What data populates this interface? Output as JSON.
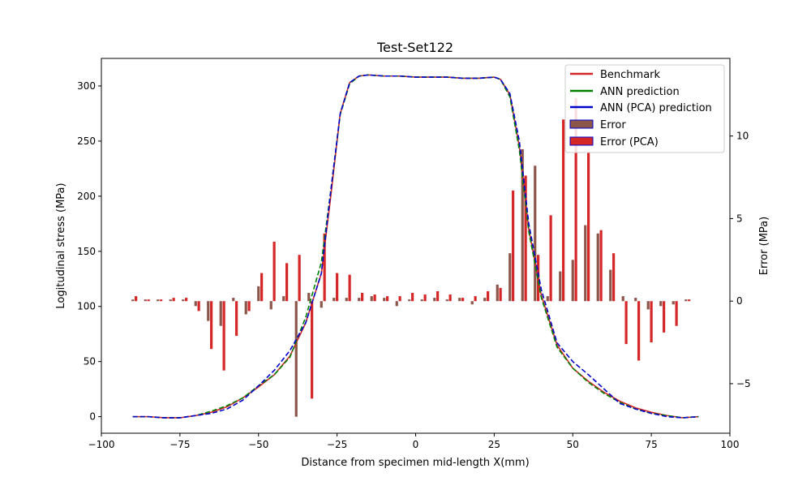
{
  "chart_data": {
    "type": "line",
    "title": "Test-Set122",
    "xlabel": "Distance from specimen mid-length X(mm)",
    "ylabel": "Logitudinal stress (MPa)",
    "y2label": "Error (MPa)",
    "xlim": [
      -100,
      100
    ],
    "ylim": [
      -15,
      325
    ],
    "y2lim": [
      -8,
      14.7
    ],
    "xticks": [
      -100,
      -75,
      -50,
      -25,
      0,
      25,
      50,
      75,
      100
    ],
    "yticks": [
      0,
      50,
      100,
      150,
      200,
      250,
      300
    ],
    "y2ticks": [
      -5,
      0,
      5,
      10
    ],
    "grid": false,
    "legend_position": "top-right",
    "series": [
      {
        "name": "Benchmark",
        "kind": "line",
        "axis": "left",
        "color": "#d62728",
        "x": [
          -90,
          -85,
          -80,
          -75,
          -70,
          -65,
          -60,
          -55,
          -50,
          -45,
          -40,
          -35,
          -30,
          -27,
          -24,
          -21,
          -18,
          -15,
          -10,
          -5,
          0,
          5,
          10,
          15,
          20,
          25,
          27,
          30,
          33,
          36,
          40,
          45,
          50,
          55,
          60,
          65,
          70,
          75,
          80,
          85,
          90
        ],
        "y": [
          0,
          0,
          -1,
          -1,
          1,
          4,
          9,
          17,
          27,
          38,
          55,
          85,
          130,
          200,
          275,
          303,
          309,
          310,
          309,
          309,
          308,
          308,
          308,
          307,
          307,
          308,
          306,
          292,
          245,
          170,
          110,
          65,
          44,
          32,
          22,
          14,
          8,
          4,
          1,
          -1,
          0
        ]
      },
      {
        "name": "ANN prediction",
        "kind": "line",
        "axis": "left",
        "color": "#008000",
        "x": [
          -90,
          -85,
          -80,
          -75,
          -70,
          -65,
          -60,
          -55,
          -50,
          -45,
          -40,
          -35,
          -30,
          -27,
          -24,
          -21,
          -18,
          -15,
          -10,
          -5,
          0,
          5,
          10,
          15,
          20,
          25,
          27,
          30,
          33,
          36,
          40,
          45,
          50,
          55,
          60,
          65,
          70,
          75,
          80,
          85,
          90
        ],
        "y": [
          0,
          0,
          -1,
          -1,
          1,
          5,
          10,
          17,
          28,
          38,
          54,
          90,
          140,
          205,
          274,
          302,
          309,
          310,
          309,
          309,
          308,
          308,
          308,
          307,
          307,
          308,
          306,
          290,
          242,
          168,
          108,
          63,
          44,
          31,
          21,
          13,
          7,
          3,
          1,
          -1,
          0
        ]
      },
      {
        "name": "ANN (PCA) prediction",
        "kind": "line",
        "axis": "left",
        "color": "#0000cd",
        "x": [
          -90,
          -85,
          -80,
          -75,
          -70,
          -65,
          -60,
          -55,
          -50,
          -45,
          -40,
          -35,
          -30,
          -27,
          -24,
          -21,
          -18,
          -15,
          -10,
          -5,
          0,
          5,
          10,
          15,
          20,
          25,
          27,
          30,
          33,
          36,
          40,
          45,
          50,
          55,
          60,
          65,
          70,
          75,
          80,
          85,
          90
        ],
        "y": [
          0,
          0,
          -1,
          -1,
          1,
          3,
          7,
          15,
          28,
          42,
          60,
          85,
          130,
          205,
          275,
          303,
          309,
          310,
          309,
          309,
          308,
          308,
          308,
          307,
          307,
          308,
          306,
          293,
          250,
          175,
          115,
          67,
          50,
          38,
          25,
          12,
          7,
          3,
          0,
          -1,
          0
        ]
      },
      {
        "name": "Error",
        "kind": "bar",
        "axis": "right",
        "color": "#8c564b",
        "x": [
          -90,
          -86,
          -82,
          -78,
          -74,
          -70,
          -66,
          -62,
          -58,
          -54,
          -50,
          -46,
          -42,
          -38,
          -34,
          -30,
          -26,
          -22,
          -18,
          -14,
          -10,
          -6,
          -2,
          2,
          6,
          10,
          14,
          18,
          22,
          26,
          30,
          34,
          38,
          42,
          46,
          50,
          54,
          58,
          62,
          66,
          70,
          74,
          78,
          82,
          86
        ],
        "values": [
          0.1,
          0.1,
          0.1,
          0.1,
          0.1,
          -0.3,
          -1.2,
          -1.5,
          0.2,
          -0.8,
          0.9,
          -0.5,
          0.3,
          -7.0,
          0.5,
          -0.4,
          0.2,
          0.2,
          0.2,
          0.3,
          0.2,
          -0.3,
          0.1,
          0.1,
          0.2,
          0.1,
          0.2,
          -0.2,
          0.2,
          1.0,
          2.9,
          9.2,
          8.2,
          0.3,
          1.8,
          2.5,
          4.6,
          4.1,
          1.9,
          0.3,
          0.2,
          -0.5,
          -0.3,
          -0.2,
          0.1
        ]
      },
      {
        "name": "Error (PCA)",
        "kind": "bar",
        "axis": "right",
        "color": "#d62728",
        "x": [
          -89,
          -85,
          -81,
          -77,
          -73,
          -69,
          -65,
          -61,
          -57,
          -53,
          -49,
          -45,
          -41,
          -37,
          -33,
          -29,
          -25,
          -21,
          -17,
          -13,
          -9,
          -5,
          -1,
          3,
          7,
          11,
          15,
          19,
          23,
          27,
          31,
          35,
          39,
          43,
          47,
          51,
          55,
          59,
          63,
          67,
          71,
          75,
          79,
          83,
          87
        ],
        "values": [
          0.3,
          0.1,
          0.1,
          0.2,
          0.2,
          -0.6,
          -2.9,
          -4.2,
          -2.1,
          -0.6,
          1.7,
          3.6,
          2.3,
          2.8,
          -5.9,
          4.1,
          1.7,
          1.6,
          0.5,
          0.4,
          0.3,
          0.3,
          0.5,
          0.4,
          0.6,
          0.4,
          0.2,
          0.3,
          0.6,
          0.8,
          6.7,
          7.6,
          2.8,
          5.2,
          11.0,
          12.3,
          9.0,
          4.3,
          2.9,
          -2.6,
          -3.6,
          -2.5,
          -1.9,
          -1.5,
          0.1
        ]
      }
    ]
  }
}
